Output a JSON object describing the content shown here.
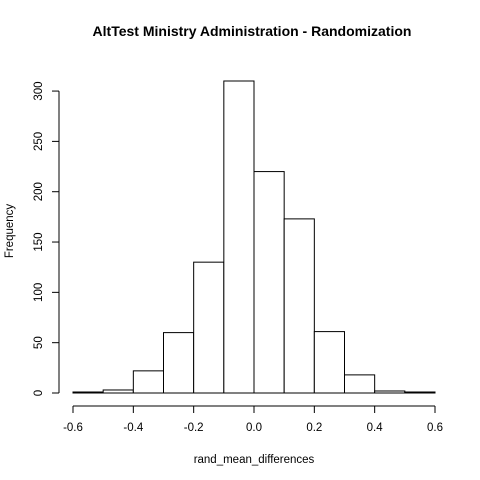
{
  "chart_data": {
    "type": "bar",
    "title": "AltTest Ministry Administration - Randomization",
    "xlabel": "rand_mean_differences",
    "ylabel": "Frequency",
    "bins": [
      {
        "x0": -0.6,
        "x1": -0.5,
        "count": 1
      },
      {
        "x0": -0.5,
        "x1": -0.4,
        "count": 3
      },
      {
        "x0": -0.4,
        "x1": -0.3,
        "count": 22
      },
      {
        "x0": -0.3,
        "x1": -0.2,
        "count": 60
      },
      {
        "x0": -0.2,
        "x1": -0.1,
        "count": 130
      },
      {
        "x0": -0.1,
        "x1": 0.0,
        "count": 310
      },
      {
        "x0": 0.0,
        "x1": 0.1,
        "count": 220
      },
      {
        "x0": 0.1,
        "x1": 0.2,
        "count": 173
      },
      {
        "x0": 0.2,
        "x1": 0.3,
        "count": 61
      },
      {
        "x0": 0.3,
        "x1": 0.4,
        "count": 18
      },
      {
        "x0": 0.4,
        "x1": 0.5,
        "count": 2
      },
      {
        "x0": 0.5,
        "x1": 0.6,
        "count": 1
      }
    ],
    "xlim": [
      -0.6,
      0.6
    ],
    "ylim": [
      0,
      310
    ],
    "x_ticks": [
      -0.6,
      -0.4,
      -0.2,
      0.0,
      0.2,
      0.4,
      0.6
    ],
    "x_tick_labels": [
      "-0.6",
      "-0.4",
      "-0.2",
      "0.0",
      "0.2",
      "0.4",
      "0.6"
    ],
    "y_ticks": [
      0,
      50,
      100,
      150,
      200,
      250,
      300
    ],
    "y_tick_labels": [
      "0",
      "50",
      "100",
      "150",
      "200",
      "250",
      "300"
    ],
    "grid": false,
    "colors": {
      "bar_fill": "#ffffff",
      "bar_stroke": "#000000",
      "axis": "#000000",
      "background": "#ffffff"
    }
  }
}
